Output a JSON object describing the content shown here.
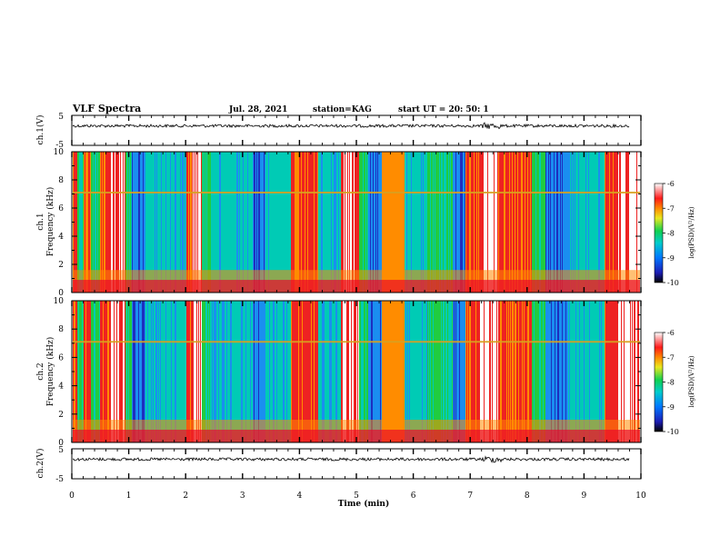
{
  "header": {
    "title": "VLF Spectra",
    "date": "Jul. 28, 2021",
    "station": "station=KAG",
    "start": "start UT = 20: 50: 1"
  },
  "chart_data": [
    {
      "type": "line",
      "name": "ch1-waveform",
      "ylabel": "ch.1(V)",
      "xlim": [
        0,
        10
      ],
      "ylim": [
        -5,
        5
      ],
      "yticks": [
        "5",
        "-5"
      ]
    },
    {
      "type": "heatmap",
      "name": "ch1-spectrogram",
      "ylabel_line1": "ch.1",
      "ylabel_line2": "Frequency (kHz)",
      "xlim": [
        0,
        10
      ],
      "ylim": [
        0,
        10
      ],
      "yticks": [
        "0",
        "2",
        "4",
        "6",
        "8",
        "10"
      ],
      "colorbar": {
        "label": "log(PSD)(V²/Hz)",
        "range": [
          -10,
          -6
        ],
        "ticks": [
          "-6",
          "-7",
          "-8",
          "-9",
          "-10"
        ]
      }
    },
    {
      "type": "heatmap",
      "name": "ch2-spectrogram",
      "ylabel_line1": "ch.2",
      "ylabel_line2": "Frequency (kHz)",
      "xlim": [
        0,
        10
      ],
      "ylim": [
        0,
        10
      ],
      "yticks": [
        "0",
        "2",
        "4",
        "6",
        "8",
        "10"
      ],
      "colorbar": {
        "label": "log(PSD)(V²/Hz)",
        "range": [
          -10,
          -6
        ],
        "ticks": [
          "-6",
          "-7",
          "-8",
          "-9",
          "-10"
        ]
      }
    },
    {
      "type": "line",
      "name": "ch2-waveform",
      "ylabel": "ch.2(V)",
      "xlim": [
        0,
        10
      ],
      "ylim": [
        -5,
        5
      ],
      "yticks": [
        "5",
        "-5"
      ]
    }
  ],
  "xaxis": {
    "label": "Time (min)",
    "ticks": [
      "0",
      "1",
      "2",
      "3",
      "4",
      "5",
      "6",
      "7",
      "8",
      "9",
      "10"
    ]
  }
}
